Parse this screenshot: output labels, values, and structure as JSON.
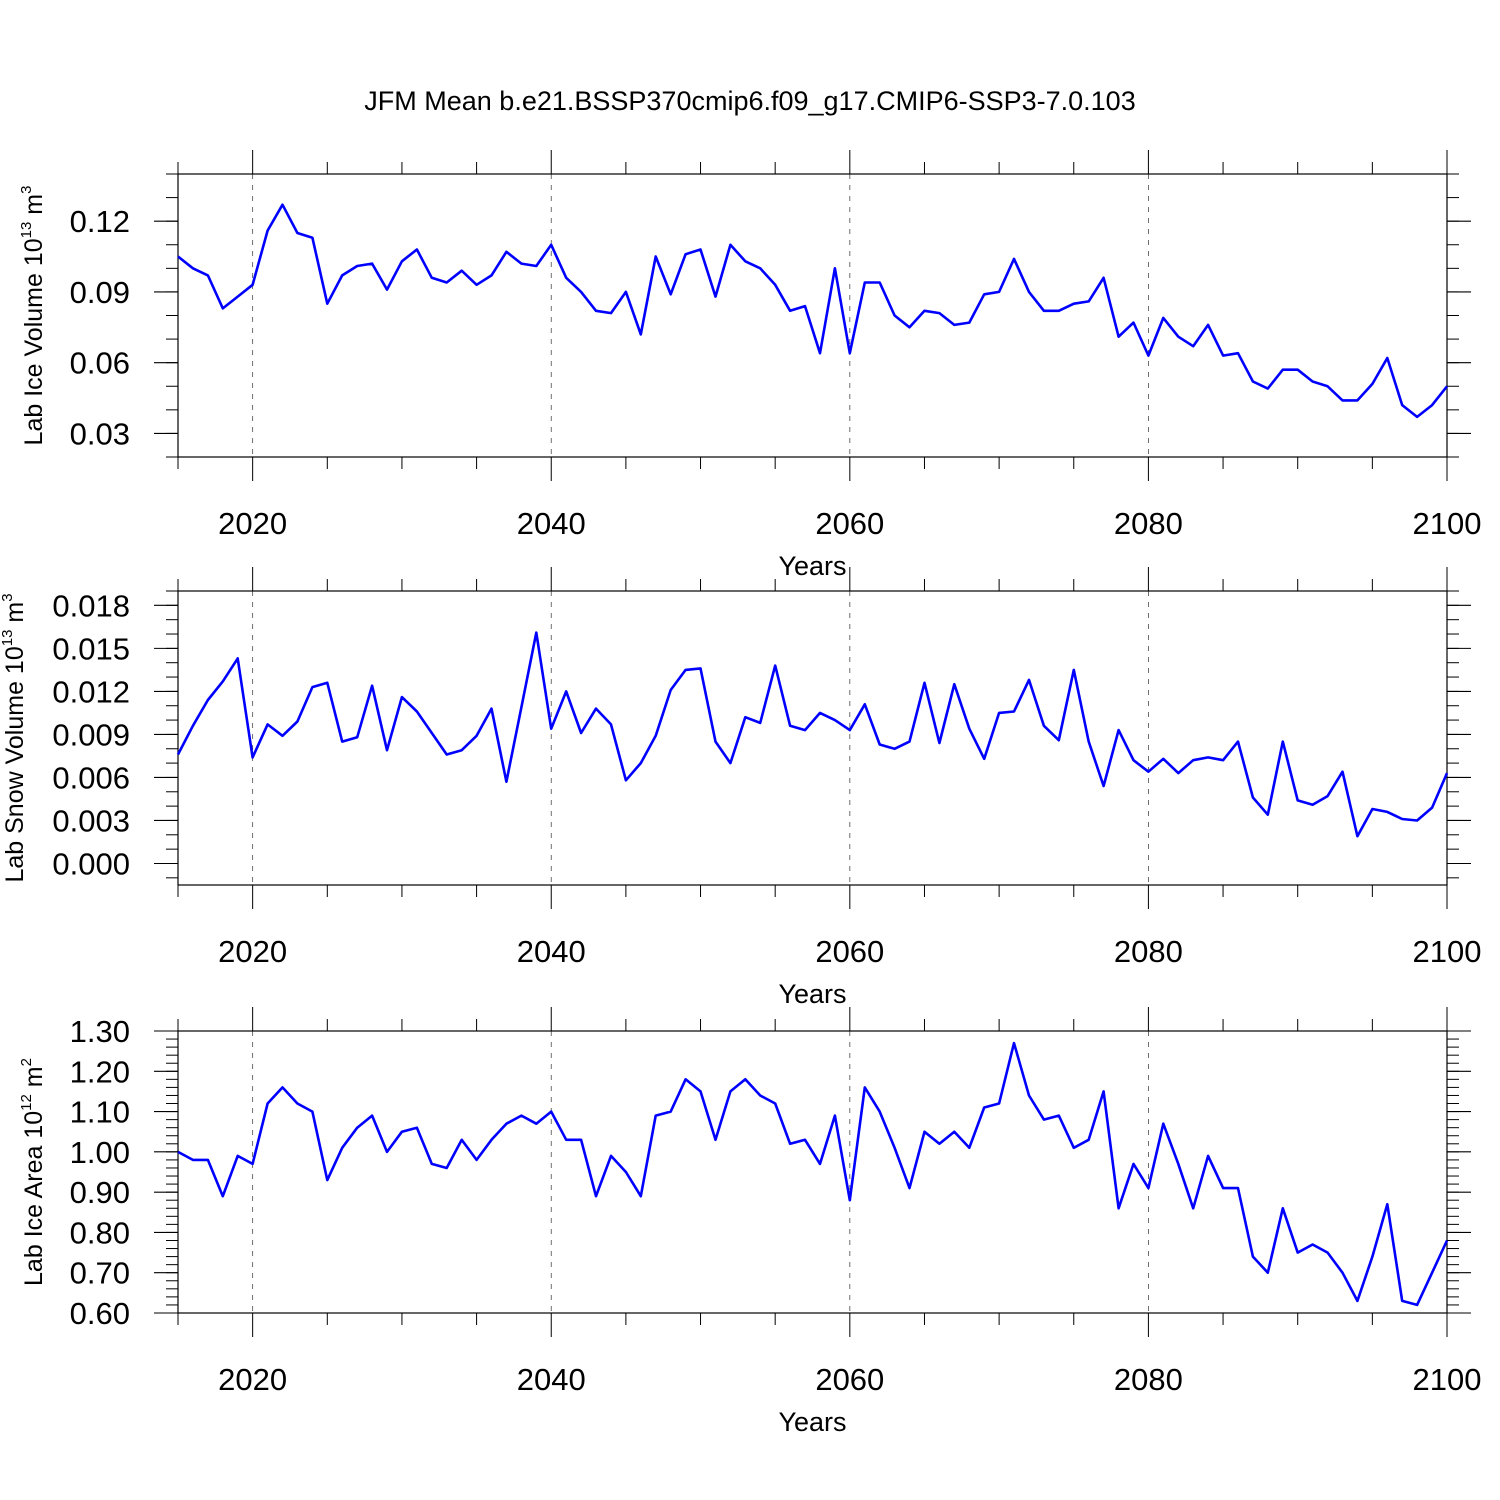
{
  "title": "JFM Mean b.e21.BSSP370cmip6.f09_g17.CMIP6-SSP3-7.0.103",
  "chart_data": [
    {
      "type": "line",
      "ylabel": {
        "main": "Lab Ice Volume 10",
        "exp": "13",
        "unit": " m",
        "unit_exp": "3"
      },
      "xlabel": "Years",
      "xlim": [
        2015,
        2100
      ],
      "ylim": [
        0.02,
        0.14
      ],
      "xticks": [
        2020,
        2040,
        2060,
        2080,
        2100
      ],
      "yticks": [
        0.03,
        0.06,
        0.09,
        0.12
      ],
      "ytick_labels": [
        "0.03",
        "0.06",
        "0.09",
        "0.12"
      ],
      "y_minor_step": 0.01,
      "grid": "dashed vertical lines at major x ticks",
      "line_color": "#0000ff",
      "x_start": 2015,
      "values": [
        0.105,
        0.1,
        0.097,
        0.083,
        0.088,
        0.093,
        0.116,
        0.127,
        0.115,
        0.113,
        0.085,
        0.097,
        0.101,
        0.102,
        0.091,
        0.103,
        0.108,
        0.096,
        0.094,
        0.099,
        0.093,
        0.097,
        0.107,
        0.102,
        0.101,
        0.11,
        0.096,
        0.09,
        0.082,
        0.081,
        0.09,
        0.072,
        0.105,
        0.089,
        0.106,
        0.108,
        0.088,
        0.11,
        0.103,
        0.1,
        0.093,
        0.082,
        0.084,
        0.064,
        0.1,
        0.064,
        0.094,
        0.094,
        0.08,
        0.075,
        0.082,
        0.081,
        0.076,
        0.077,
        0.089,
        0.09,
        0.104,
        0.09,
        0.082,
        0.082,
        0.085,
        0.086,
        0.096,
        0.071,
        0.077,
        0.063,
        0.079,
        0.071,
        0.067,
        0.076,
        0.063,
        0.064,
        0.052,
        0.049,
        0.057,
        0.057,
        0.052,
        0.05,
        0.044,
        0.044,
        0.051,
        0.062,
        0.042,
        0.037,
        0.042,
        0.05
      ]
    },
    {
      "type": "line",
      "ylabel": {
        "main": "Lab Snow Volume 10",
        "exp": "13",
        "unit": " m",
        "unit_exp": "3"
      },
      "xlabel": "Years",
      "xlim": [
        2015,
        2100
      ],
      "ylim": [
        -0.0015,
        0.019
      ],
      "xticks": [
        2020,
        2040,
        2060,
        2080,
        2100
      ],
      "yticks": [
        0.0,
        0.003,
        0.006,
        0.009,
        0.012,
        0.015,
        0.018
      ],
      "ytick_labels": [
        "0.000",
        "0.003",
        "0.006",
        "0.009",
        "0.012",
        "0.015",
        "0.018"
      ],
      "y_minor_step": 0.001,
      "grid": "dashed vertical lines at major x ticks",
      "line_color": "#0000ff",
      "x_start": 2015,
      "values": [
        0.0076,
        0.0096,
        0.0114,
        0.0127,
        0.0143,
        0.0074,
        0.0097,
        0.0089,
        0.0099,
        0.0123,
        0.0126,
        0.0085,
        0.0088,
        0.0124,
        0.0079,
        0.0116,
        0.0106,
        0.0091,
        0.0076,
        0.0079,
        0.0089,
        0.0108,
        0.0057,
        0.0109,
        0.0161,
        0.0094,
        0.012,
        0.0091,
        0.0108,
        0.0097,
        0.0058,
        0.007,
        0.0089,
        0.0121,
        0.0135,
        0.0136,
        0.0085,
        0.007,
        0.0102,
        0.0098,
        0.0138,
        0.0096,
        0.0093,
        0.0105,
        0.01,
        0.0093,
        0.0111,
        0.0083,
        0.008,
        0.0085,
        0.0126,
        0.0084,
        0.0125,
        0.0094,
        0.0073,
        0.0105,
        0.0106,
        0.0128,
        0.0096,
        0.0086,
        0.0135,
        0.0085,
        0.0054,
        0.0093,
        0.0072,
        0.0064,
        0.0073,
        0.0063,
        0.0072,
        0.0074,
        0.0072,
        0.0085,
        0.0046,
        0.0034,
        0.0085,
        0.0044,
        0.0041,
        0.0047,
        0.0064,
        0.0019,
        0.0038,
        0.0036,
        0.0031,
        0.003,
        0.0039,
        0.0063
      ]
    },
    {
      "type": "line",
      "ylabel": {
        "main": "Lab Ice Area 10",
        "exp": "12",
        "unit": " m",
        "unit_exp": "2"
      },
      "xlabel": "Years",
      "xlim": [
        2015,
        2100
      ],
      "ylim": [
        0.6,
        1.3
      ],
      "xticks": [
        2020,
        2040,
        2060,
        2080,
        2100
      ],
      "yticks": [
        0.6,
        0.7,
        0.8,
        0.9,
        1.0,
        1.1,
        1.2,
        1.3
      ],
      "ytick_labels": [
        "0.60",
        "0.70",
        "0.80",
        "0.90",
        "1.00",
        "1.10",
        "1.20",
        "1.30"
      ],
      "y_minor_step": 0.02,
      "grid": "dashed vertical lines at major x ticks",
      "line_color": "#0000ff",
      "x_start": 2015,
      "values": [
        1.0,
        0.98,
        0.98,
        0.89,
        0.99,
        0.97,
        1.12,
        1.16,
        1.12,
        1.1,
        0.93,
        1.01,
        1.06,
        1.09,
        1.0,
        1.05,
        1.06,
        0.97,
        0.96,
        1.03,
        0.98,
        1.03,
        1.07,
        1.09,
        1.07,
        1.1,
        1.03,
        1.03,
        0.89,
        0.99,
        0.95,
        0.89,
        1.09,
        1.1,
        1.18,
        1.15,
        1.03,
        1.15,
        1.18,
        1.14,
        1.12,
        1.02,
        1.03,
        0.97,
        1.09,
        0.88,
        1.16,
        1.1,
        1.01,
        0.91,
        1.05,
        1.02,
        1.05,
        1.01,
        1.11,
        1.12,
        1.27,
        1.14,
        1.08,
        1.09,
        1.01,
        1.03,
        1.15,
        0.86,
        0.97,
        0.91,
        1.07,
        0.97,
        0.86,
        0.99,
        0.91,
        0.91,
        0.74,
        0.7,
        0.86,
        0.75,
        0.77,
        0.75,
        0.7,
        0.63,
        0.74,
        0.87,
        0.63,
        0.62,
        0.7,
        0.78
      ]
    }
  ]
}
